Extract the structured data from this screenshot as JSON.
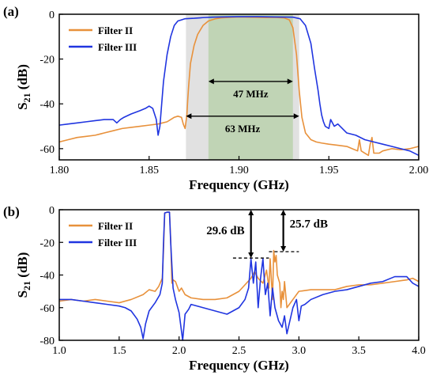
{
  "colors": {
    "filter2": "#E8913B",
    "filter3": "#2035E0",
    "shade_outer": "#DCDCDC",
    "shade_inner": "#BCD3B0"
  },
  "chart_data": [
    {
      "id": "a",
      "panel_label": "(a)",
      "type": "line",
      "xlabel": "Frequency (GHz)",
      "ylabel": "S21 (dB)",
      "ylabel_main": "S",
      "ylabel_sub": "21",
      "ylabel_rest": " (dB)",
      "xlim": [
        1.8,
        2.0
      ],
      "ylim": [
        -65,
        0
      ],
      "xticks": [
        1.8,
        1.85,
        1.9,
        1.95,
        2.0
      ],
      "xtick_labels": [
        "1.80",
        "1.85",
        "1.90",
        "1.95",
        "2.00"
      ],
      "yticks": [
        0,
        -20,
        -40,
        -60
      ],
      "ytick_labels": [
        "0",
        "-20",
        "-40",
        "-60"
      ],
      "shaded_bands": [
        {
          "x0": 1.8705,
          "x1": 1.9335,
          "label": "63 MHz"
        },
        {
          "x0": 1.883,
          "x1": 1.93,
          "label": "47 MHz"
        }
      ],
      "annotations": [
        {
          "text": "47 MHz",
          "x0": 1.883,
          "x1": 1.93,
          "y": -30
        },
        {
          "text": "63 MHz",
          "x0": 1.8705,
          "x1": 1.9335,
          "y": -45.5
        }
      ],
      "legend_position": "top-left",
      "series": [
        {
          "name": "Filter II",
          "color": "#E8913B",
          "x": [
            1.8,
            1.805,
            1.81,
            1.815,
            1.82,
            1.825,
            1.83,
            1.835,
            1.84,
            1.845,
            1.85,
            1.855,
            1.86,
            1.862,
            1.864,
            1.866,
            1.868,
            1.869,
            1.87,
            1.871,
            1.8715,
            1.872,
            1.873,
            1.875,
            1.877,
            1.88,
            1.883,
            1.887,
            1.89,
            1.895,
            1.9,
            1.905,
            1.91,
            1.915,
            1.92,
            1.925,
            1.928,
            1.93,
            1.932,
            1.9335,
            1.935,
            1.937,
            1.94,
            1.943,
            1.946,
            1.95,
            1.955,
            1.96,
            1.963,
            1.966,
            1.967,
            1.968,
            1.97,
            1.972,
            1.973,
            1.974,
            1.975,
            1.978,
            1.98,
            1.985,
            1.99,
            1.995,
            2.0
          ],
          "y": [
            -57,
            -56,
            -55,
            -54.5,
            -54,
            -53,
            -52,
            -51,
            -50.5,
            -50,
            -49.5,
            -49,
            -48,
            -47,
            -46,
            -45.5,
            -46,
            -49,
            -51,
            -45,
            -38,
            -32,
            -22,
            -14,
            -9,
            -5,
            -3,
            -2,
            -1.6,
            -1.4,
            -1.2,
            -1.3,
            -1.4,
            -1.5,
            -1.4,
            -1.6,
            -2.5,
            -6,
            -18,
            -34,
            -46,
            -53,
            -56,
            -57,
            -57.5,
            -58,
            -58.5,
            -59,
            -60,
            -61,
            -56,
            -61,
            -62,
            -63,
            -58,
            -55,
            -62,
            -62,
            -61,
            -60,
            -60.5,
            -60,
            -59
          ]
        },
        {
          "name": "Filter III",
          "color": "#2035E0",
          "x": [
            1.8,
            1.805,
            1.81,
            1.815,
            1.82,
            1.825,
            1.83,
            1.832,
            1.834,
            1.836,
            1.84,
            1.845,
            1.848,
            1.85,
            1.852,
            1.854,
            1.855,
            1.856,
            1.857,
            1.858,
            1.86,
            1.862,
            1.864,
            1.866,
            1.868,
            1.87,
            1.875,
            1.88,
            1.885,
            1.89,
            1.9,
            1.91,
            1.92,
            1.93,
            1.934,
            1.937,
            1.94,
            1.942,
            1.944,
            1.945,
            1.946,
            1.947,
            1.948,
            1.95,
            1.951,
            1.953,
            1.955,
            1.96,
            1.965,
            1.97,
            1.975,
            1.98,
            1.985,
            1.99,
            1.995,
            2.0
          ],
          "y": [
            -49.5,
            -49,
            -48.5,
            -48,
            -47.5,
            -47,
            -47,
            -48.5,
            -47,
            -46,
            -44.5,
            -43,
            -42,
            -41,
            -42,
            -47,
            -54,
            -50,
            -40,
            -30,
            -18,
            -10,
            -5,
            -3,
            -2.5,
            -2,
            -1.8,
            -1.5,
            -1.3,
            -1.2,
            -1.1,
            -1.1,
            -1.2,
            -1.3,
            -2,
            -5,
            -13,
            -24,
            -34,
            -40,
            -45,
            -48,
            -50,
            -51,
            -47,
            -50,
            -49,
            -53,
            -54,
            -56,
            -57,
            -58,
            -59,
            -60,
            -61,
            -63
          ]
        }
      ]
    },
    {
      "id": "b",
      "panel_label": "(b)",
      "type": "line",
      "xlabel": "Frequency (GHz)",
      "ylabel": "S21 (dB)",
      "ylabel_main": "S",
      "ylabel_sub": "21",
      "ylabel_rest": " (dB)",
      "xlim": [
        1.0,
        4.0
      ],
      "ylim": [
        -80,
        0
      ],
      "xticks": [
        1.0,
        1.5,
        2.0,
        2.5,
        3.0,
        3.5,
        4.0
      ],
      "xtick_labels": [
        "1.0",
        "1.5",
        "2.0",
        "2.5",
        "3.0",
        "3.5",
        "4.0"
      ],
      "yticks": [
        0,
        -20,
        -40,
        -60,
        -80
      ],
      "ytick_labels": [
        "0",
        "-20",
        "-40",
        "-60",
        "-80"
      ],
      "annotations": [
        {
          "text": "29.6 dB",
          "x": 2.6,
          "y_top": 0,
          "y_bottom": -29.6,
          "dash_x0": 2.45,
          "dash_x1": 2.75
        },
        {
          "text": "25.7 dB",
          "x": 2.87,
          "y_top": 0,
          "y_bottom": -25.7,
          "dash_x0": 2.75,
          "dash_x1": 3.0
        }
      ],
      "legend_position": "top-left",
      "series": [
        {
          "name": "Filter II",
          "color": "#E8913B",
          "x": [
            1.0,
            1.1,
            1.2,
            1.3,
            1.4,
            1.5,
            1.6,
            1.7,
            1.75,
            1.8,
            1.83,
            1.86,
            1.87,
            1.88,
            1.9,
            1.92,
            1.93,
            1.94,
            1.95,
            1.97,
            2.0,
            2.02,
            2.05,
            2.1,
            2.2,
            2.3,
            2.4,
            2.45,
            2.5,
            2.55,
            2.6,
            2.63,
            2.66,
            2.7,
            2.73,
            2.75,
            2.76,
            2.78,
            2.79,
            2.8,
            2.81,
            2.82,
            2.84,
            2.85,
            2.86,
            2.87,
            2.88,
            2.9,
            2.95,
            3.0,
            3.1,
            3.2,
            3.3,
            3.4,
            3.5,
            3.6,
            3.7,
            3.8,
            3.9,
            3.95,
            4.0
          ],
          "y": [
            -56,
            -55,
            -56,
            -55,
            -56,
            -57,
            -55,
            -52,
            -49,
            -50,
            -47,
            -42,
            -25,
            -2,
            -1.5,
            -1.5,
            -18,
            -45,
            -43,
            -44,
            -50,
            -48,
            -52,
            -54,
            -55,
            -55,
            -54,
            -52,
            -50,
            -46,
            -42,
            -38,
            -42,
            -45,
            -37,
            -48,
            -30,
            -55,
            -25,
            -32,
            -28,
            -40,
            -45,
            -60,
            -50,
            -55,
            -44,
            -60,
            -55,
            -50,
            -49,
            -49,
            -49,
            -47,
            -46,
            -46,
            -45,
            -44,
            -43,
            -42,
            -44
          ]
        },
        {
          "name": "Filter III",
          "color": "#2035E0",
          "x": [
            1.0,
            1.1,
            1.2,
            1.3,
            1.4,
            1.5,
            1.55,
            1.6,
            1.65,
            1.68,
            1.7,
            1.72,
            1.75,
            1.8,
            1.84,
            1.86,
            1.87,
            1.88,
            1.9,
            1.92,
            1.93,
            1.95,
            1.97,
            2.0,
            2.03,
            2.05,
            2.08,
            2.1,
            2.2,
            2.3,
            2.4,
            2.45,
            2.5,
            2.55,
            2.58,
            2.6,
            2.62,
            2.64,
            2.66,
            2.68,
            2.7,
            2.72,
            2.74,
            2.76,
            2.78,
            2.8,
            2.83,
            2.86,
            2.88,
            2.9,
            2.95,
            2.98,
            3.0,
            3.02,
            3.05,
            3.1,
            3.2,
            3.3,
            3.4,
            3.5,
            3.6,
            3.7,
            3.8,
            3.9,
            3.95,
            4.0
          ],
          "y": [
            -55,
            -55,
            -56,
            -57,
            -58,
            -59,
            -60,
            -62,
            -67,
            -72,
            -79,
            -70,
            -62,
            -57,
            -52,
            -45,
            -20,
            -2,
            -1.5,
            -1.5,
            -20,
            -48,
            -55,
            -63,
            -80,
            -64,
            -61,
            -58,
            -60,
            -62,
            -64,
            -62,
            -60,
            -55,
            -48,
            -30,
            -45,
            -32,
            -60,
            -42,
            -30,
            -52,
            -45,
            -65,
            -48,
            -60,
            -68,
            -72,
            -65,
            -76,
            -60,
            -55,
            -68,
            -59,
            -58,
            -55,
            -52,
            -50,
            -49,
            -47,
            -45,
            -44,
            -41,
            -41,
            -45,
            -47
          ]
        }
      ]
    }
  ]
}
